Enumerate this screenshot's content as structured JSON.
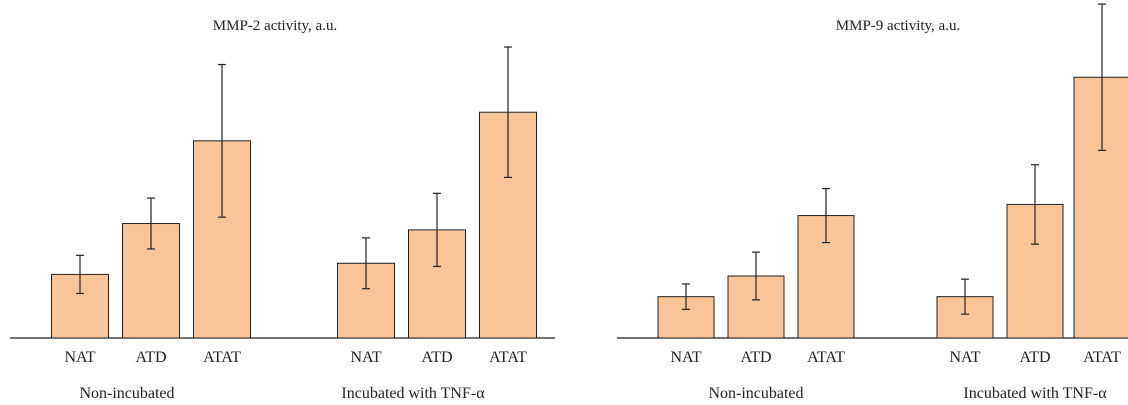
{
  "colors": {
    "bar_fill": "#f8c599",
    "bar_stroke": "#222222",
    "axis": "#222222",
    "error_bar": "#222222"
  },
  "chart_data": [
    {
      "type": "bar",
      "title": "MMP-2 activity, a.u.",
      "xlabel": "",
      "ylabel": "",
      "ylim": [
        0,
        100
      ],
      "grid": false,
      "groups": [
        "Non-incubated",
        "Incubated with TNF-α"
      ],
      "categories": [
        "NAT",
        "ATD",
        "ATAT"
      ],
      "series": [
        {
          "group": "Non-incubated",
          "values": [
            20,
            36,
            62
          ],
          "errors": [
            6,
            8,
            24
          ]
        },
        {
          "group": "Incubated with TNF-α",
          "values": [
            23.5,
            34,
            71
          ],
          "errors": [
            8,
            11.5,
            20.5
          ]
        }
      ]
    },
    {
      "type": "bar",
      "title": "MMP-9 activity, a.u.",
      "xlabel": "",
      "ylabel": "",
      "ylim": [
        0,
        100
      ],
      "grid": false,
      "groups": [
        "Non-incubated",
        "Incubated with TNF-α"
      ],
      "categories": [
        "NAT",
        "ATD",
        "ATAT"
      ],
      "series": [
        {
          "group": "Non-incubated",
          "values": [
            13,
            19.5,
            38.5
          ],
          "errors": [
            4,
            7.5,
            8.5
          ]
        },
        {
          "group": "Incubated with TNF-α",
          "values": [
            13,
            42,
            82
          ],
          "errors": [
            5.5,
            12.5,
            23
          ]
        }
      ]
    }
  ]
}
